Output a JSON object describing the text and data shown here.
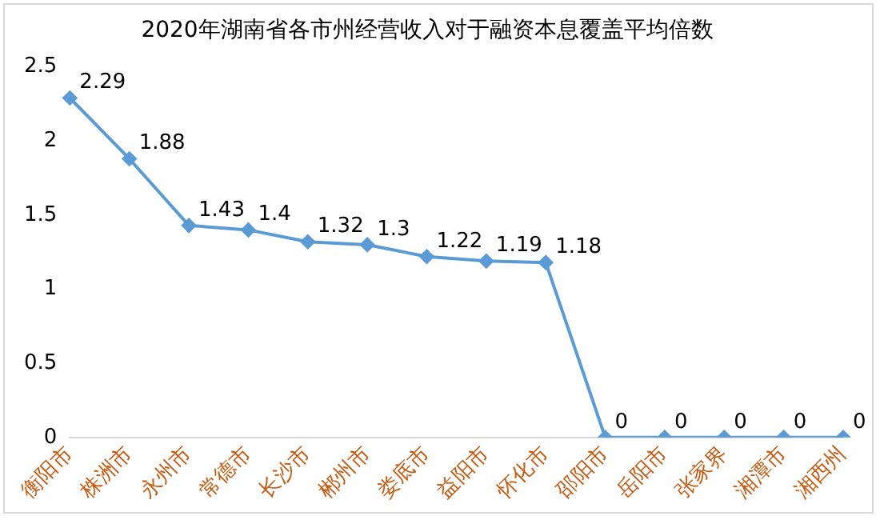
{
  "chart_data": {
    "type": "line",
    "title": "2020年湖南省各市州经营收入对于融资本息覆盖平均倍数",
    "categories": [
      "衡阳市",
      "株洲市",
      "永州市",
      "常德市",
      "长沙市",
      "郴州市",
      "娄底市",
      "益阳市",
      "怀化市",
      "邵阳市",
      "岳阳市",
      "张家界",
      "湘潭市",
      "湘西州"
    ],
    "series": [
      {
        "color": "#5b9bd5",
        "values": [
          2.29,
          1.88,
          1.43,
          1.4,
          1.32,
          1.3,
          1.22,
          1.19,
          1.18,
          0,
          0,
          0,
          0,
          0
        ]
      }
    ],
    "ylim": [
      0,
      2.5
    ],
    "yticks": [
      0,
      0.5,
      1,
      1.5,
      2,
      2.5
    ],
    "grid": false,
    "legend": false,
    "marker": "diamond",
    "line_style": "solid",
    "data_labels": true
  }
}
